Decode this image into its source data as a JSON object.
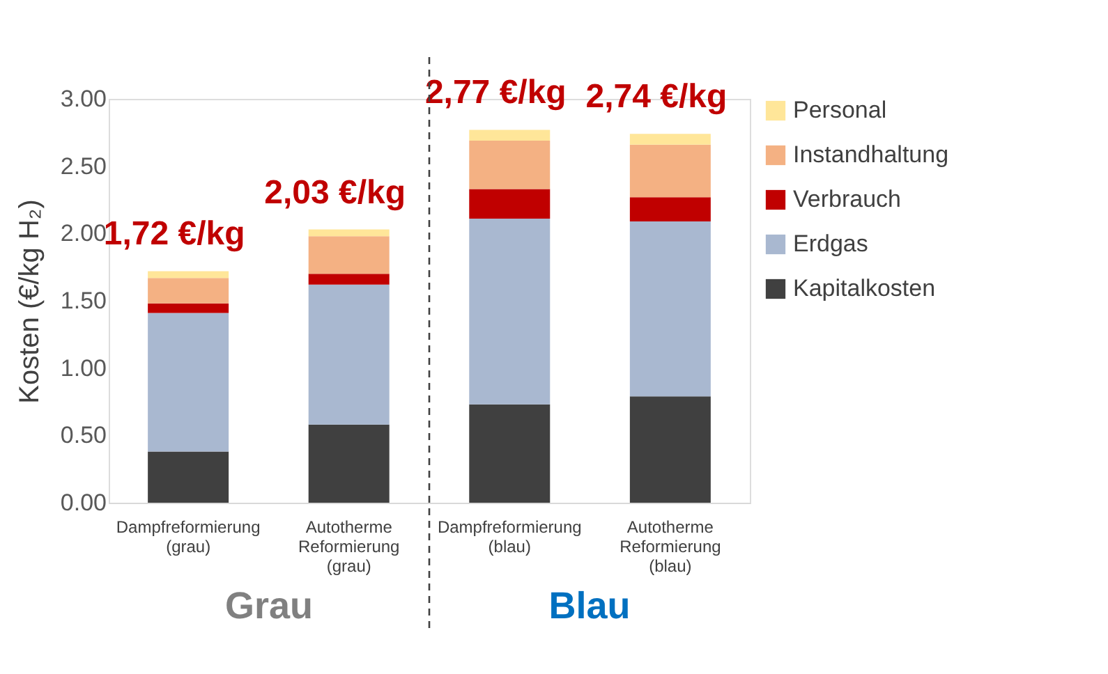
{
  "chart_data": {
    "type": "bar",
    "stacked": true,
    "ylabel": "Kosten (€/kg H₂)",
    "categories": [
      "Dampfreformierung\n(grau)",
      "Autotherme\nReformierung\n(grau)",
      "Dampfreformierung\n(blau)",
      "Autotherme\nReformierung\n(blau)"
    ],
    "series": [
      {
        "name": "Kapitalkosten",
        "color": "#404040",
        "values": [
          0.38,
          0.58,
          0.73,
          0.79
        ]
      },
      {
        "name": "Erdgas",
        "color": "#a9b8d0",
        "values": [
          1.03,
          1.04,
          1.38,
          1.3
        ]
      },
      {
        "name": "Verbrauch",
        "color": "#c00000",
        "values": [
          0.07,
          0.08,
          0.22,
          0.18
        ]
      },
      {
        "name": "Instandhaltung",
        "color": "#f4b183",
        "values": [
          0.19,
          0.28,
          0.36,
          0.39
        ]
      },
      {
        "name": "Personal",
        "color": "#ffe699",
        "values": [
          0.05,
          0.05,
          0.08,
          0.08
        ]
      }
    ],
    "totals": [
      "1,72 €/kg",
      "2,03 €/kg",
      "2,77 €/kg",
      "2,74 €/kg"
    ],
    "ylim": [
      0,
      3
    ],
    "yticks": [
      {
        "value": 0,
        "label": "0.00"
      },
      {
        "value": 0.5,
        "label": "0.50"
      },
      {
        "value": 1,
        "label": "1.00"
      },
      {
        "value": 1.5,
        "label": "1.50"
      },
      {
        "value": 2,
        "label": "2.00"
      },
      {
        "value": 2.5,
        "label": "2.50"
      },
      {
        "value": 3,
        "label": "3.00"
      }
    ],
    "annotations": [
      "Grau",
      "Blau"
    ],
    "legend": "right",
    "grid": false
  }
}
